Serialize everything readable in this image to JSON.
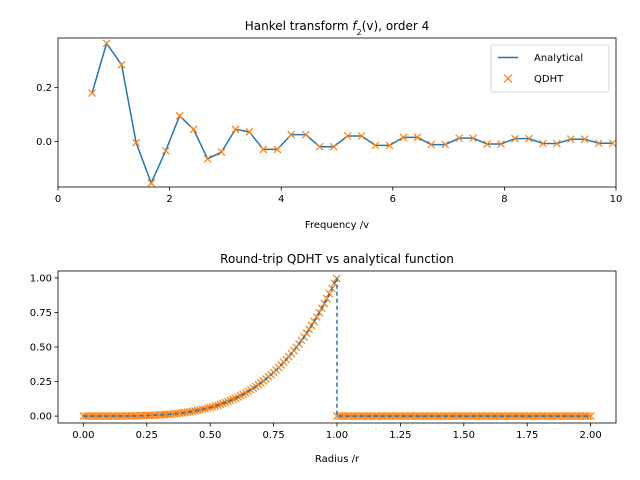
{
  "colors": {
    "analytical": "#1f77b4",
    "qdht": "#ff7f0e"
  },
  "chart_data": [
    {
      "type": "line",
      "title_prefix": "Hankel transform ",
      "title_math": "f",
      "title_sub": "2",
      "title_suffix": "(v), order 4",
      "xlabel": "Frequency /v",
      "ylabel": "",
      "xlim": [
        0,
        10
      ],
      "ylim": [
        -0.17,
        0.385
      ],
      "xticks": [
        0,
        2,
        4,
        6,
        8,
        10
      ],
      "xtick_labels": [
        "0",
        "2",
        "4",
        "6",
        "8",
        "10"
      ],
      "yticks": [
        0.0,
        0.2
      ],
      "ytick_labels": [
        "0.0",
        "0.2"
      ],
      "grid": false,
      "legend": {
        "placement": "top-right",
        "entries": [
          "Analytical",
          "QDHT"
        ]
      },
      "series": [
        {
          "name": "Analytical",
          "style": "line",
          "x": [
            0.61,
            0.87,
            1.14,
            1.4,
            1.67,
            1.93,
            2.18,
            2.43,
            2.68,
            2.93,
            3.18,
            3.43,
            3.68,
            3.93,
            4.18,
            4.44,
            4.69,
            4.94,
            5.19,
            5.44,
            5.69,
            5.94,
            6.19,
            6.44,
            6.69,
            6.94,
            7.19,
            7.44,
            7.69,
            7.94,
            8.19,
            8.44,
            8.69,
            8.94,
            9.19,
            9.44,
            9.69,
            9.94
          ],
          "y": [
            0.18,
            0.365,
            0.285,
            -0.005,
            -0.155,
            -0.035,
            0.095,
            0.045,
            -0.065,
            -0.04,
            0.045,
            0.035,
            -0.03,
            -0.03,
            0.025,
            0.025,
            -0.02,
            -0.02,
            0.02,
            0.02,
            -0.015,
            -0.015,
            0.015,
            0.015,
            -0.012,
            -0.012,
            0.012,
            0.012,
            -0.01,
            -0.01,
            0.01,
            0.01,
            -0.008,
            -0.008,
            0.008,
            0.008,
            -0.007,
            -0.007
          ]
        },
        {
          "name": "QDHT",
          "style": "x-marker",
          "x": [
            0.61,
            0.87,
            1.14,
            1.4,
            1.67,
            1.93,
            2.18,
            2.43,
            2.68,
            2.93,
            3.18,
            3.43,
            3.68,
            3.93,
            4.18,
            4.44,
            4.69,
            4.94,
            5.19,
            5.44,
            5.69,
            5.94,
            6.19,
            6.44,
            6.69,
            6.94,
            7.19,
            7.44,
            7.69,
            7.94,
            8.19,
            8.44,
            8.69,
            8.94,
            9.19,
            9.44,
            9.69,
            9.94
          ],
          "y": [
            0.18,
            0.365,
            0.285,
            -0.005,
            -0.155,
            -0.035,
            0.095,
            0.045,
            -0.065,
            -0.04,
            0.045,
            0.035,
            -0.03,
            -0.03,
            0.025,
            0.025,
            -0.02,
            -0.02,
            0.02,
            0.02,
            -0.015,
            -0.015,
            0.015,
            0.015,
            -0.012,
            -0.012,
            0.012,
            0.012,
            -0.01,
            -0.01,
            0.01,
            0.01,
            -0.008,
            -0.008,
            0.008,
            0.008,
            -0.007,
            -0.007
          ]
        }
      ]
    },
    {
      "type": "line",
      "title": "Round-trip QDHT vs analytical function",
      "xlabel": "Radius /r",
      "ylabel": "",
      "xlim": [
        -0.1,
        2.1
      ],
      "ylim": [
        -0.05,
        1.05
      ],
      "xticks": [
        0.0,
        0.25,
        0.5,
        0.75,
        1.0,
        1.25,
        1.5,
        1.75,
        2.0
      ],
      "xtick_labels": [
        "0.00",
        "0.25",
        "0.50",
        "0.75",
        "1.00",
        "1.25",
        "1.50",
        "1.75",
        "2.00"
      ],
      "yticks": [
        0.0,
        0.25,
        0.5,
        0.75,
        1.0
      ],
      "ytick_labels": [
        "0.00",
        "0.25",
        "0.50",
        "0.75",
        "1.00"
      ],
      "grid": false,
      "function_description": "y = r^4 for 0 <= r < 1, y = 0 for 1 < r <= 2",
      "series": [
        {
          "name": "Analytical",
          "style": "dashed-line",
          "r_range": [
            0,
            2
          ],
          "exponent": 4,
          "cutoff": 1.0
        },
        {
          "name": "QDHT",
          "style": "x-marker",
          "r_range": [
            0,
            2
          ],
          "exponent": 4,
          "cutoff": 1.0,
          "sample_step": 0.01
        }
      ]
    }
  ]
}
